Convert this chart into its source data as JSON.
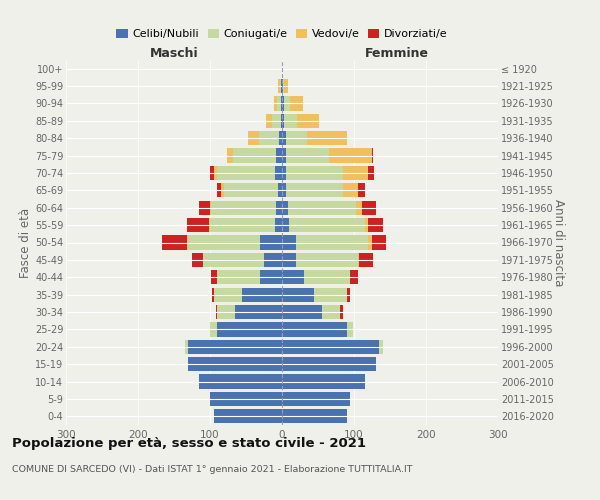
{
  "age_groups": [
    "0-4",
    "5-9",
    "10-14",
    "15-19",
    "20-24",
    "25-29",
    "30-34",
    "35-39",
    "40-44",
    "45-49",
    "50-54",
    "55-59",
    "60-64",
    "65-69",
    "70-74",
    "75-79",
    "80-84",
    "85-89",
    "90-94",
    "95-99",
    "100+"
  ],
  "birth_years": [
    "2016-2020",
    "2011-2015",
    "2006-2010",
    "2001-2005",
    "1996-2000",
    "1991-1995",
    "1986-1990",
    "1981-1985",
    "1976-1980",
    "1971-1975",
    "1966-1970",
    "1961-1965",
    "1956-1960",
    "1951-1955",
    "1946-1950",
    "1941-1945",
    "1936-1940",
    "1931-1935",
    "1926-1930",
    "1921-1925",
    "≤ 1920"
  ],
  "maschi": {
    "celibi": [
      95,
      100,
      115,
      130,
      130,
      90,
      65,
      55,
      30,
      25,
      30,
      10,
      8,
      5,
      10,
      8,
      4,
      2,
      2,
      1,
      0
    ],
    "coniugati": [
      0,
      0,
      0,
      0,
      5,
      10,
      25,
      40,
      60,
      85,
      100,
      90,
      90,
      75,
      80,
      60,
      28,
      12,
      5,
      2,
      0
    ],
    "vedovi": [
      0,
      0,
      0,
      0,
      0,
      0,
      0,
      0,
      0,
      0,
      2,
      2,
      2,
      5,
      5,
      8,
      15,
      8,
      4,
      2,
      0
    ],
    "divorziati": [
      0,
      0,
      0,
      0,
      0,
      0,
      2,
      2,
      8,
      15,
      35,
      30,
      15,
      5,
      5,
      0,
      0,
      0,
      0,
      0,
      0
    ]
  },
  "femmine": {
    "nubili": [
      90,
      95,
      115,
      130,
      135,
      90,
      55,
      45,
      30,
      20,
      20,
      10,
      8,
      5,
      5,
      5,
      5,
      3,
      3,
      1,
      0
    ],
    "coniugate": [
      0,
      0,
      0,
      0,
      5,
      8,
      25,
      45,
      65,
      85,
      100,
      105,
      95,
      80,
      80,
      60,
      30,
      18,
      8,
      2,
      0
    ],
    "vedove": [
      0,
      0,
      0,
      0,
      0,
      0,
      0,
      0,
      0,
      2,
      5,
      5,
      8,
      20,
      35,
      60,
      55,
      30,
      18,
      5,
      0
    ],
    "divorziate": [
      0,
      0,
      0,
      0,
      0,
      0,
      5,
      5,
      10,
      20,
      20,
      20,
      20,
      10,
      8,
      2,
      0,
      0,
      0,
      0,
      0
    ]
  },
  "colors": {
    "celibi": "#4a72b0",
    "coniugati": "#c5d9a0",
    "vedovi": "#f0c060",
    "divorziati": "#cc2222"
  },
  "xlim": 300,
  "title": "Popolazione per età, sesso e stato civile - 2021",
  "subtitle": "COMUNE DI SARCEDO (VI) - Dati ISTAT 1° gennaio 2021 - Elaborazione TUTTITALIA.IT",
  "xlabel_left": "Maschi",
  "xlabel_right": "Femmine",
  "ylabel_left": "Fasce di età",
  "ylabel_right": "Anni di nascita",
  "legend_labels": [
    "Celibi/Nubili",
    "Coniugati/e",
    "Vedovi/e",
    "Divorziati/e"
  ],
  "bg_color": "#f0f0eb"
}
